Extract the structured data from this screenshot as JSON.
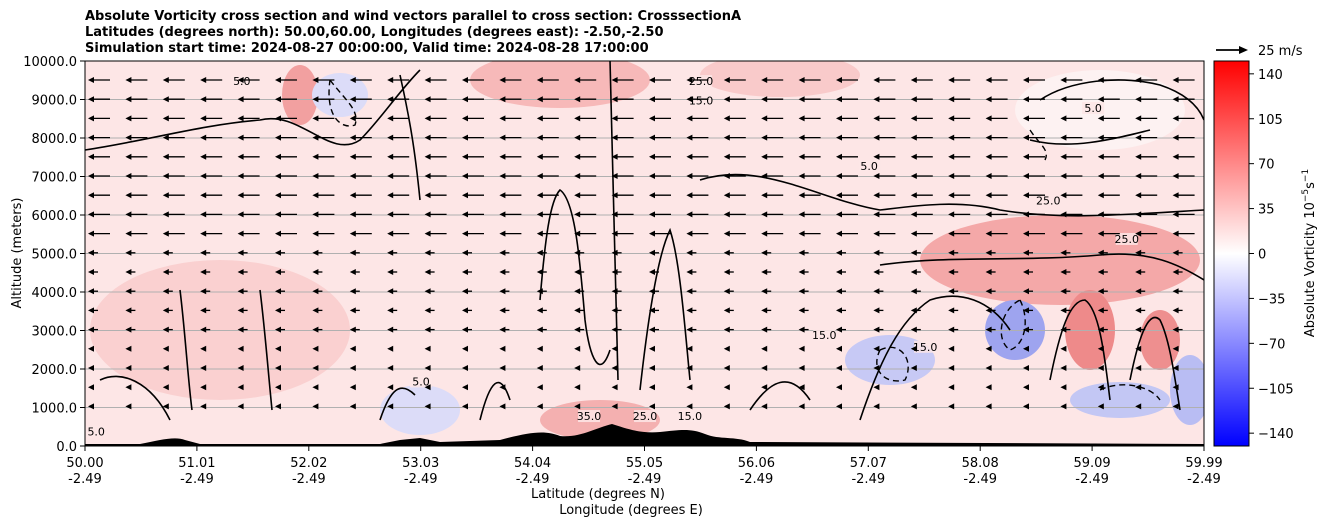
{
  "chart_data": {
    "type": "heatmap",
    "title_lines": [
      "Absolute Vorticity cross section and wind vectors parallel to cross section: CrosssectionA",
      "Latitudes (degrees north): 50.00,60.00, Longitudes (degrees east): -2.50,-2.50",
      "Simulation start time: 2024-08-27 00:00:00, Valid time: 2024-08-28 17:00:00"
    ],
    "xlabel": "Latitude (degrees N)",
    "xlabel2": "Longitude (degrees E)",
    "ylabel": "Altitude (meters)",
    "ylim": [
      0,
      10000
    ],
    "y_ticks": [
      "0.0",
      "1000.0",
      "2000.0",
      "3000.0",
      "4000.0",
      "5000.0",
      "6000.0",
      "7000.0",
      "8000.0",
      "9000.0",
      "10000.0"
    ],
    "x_ticks": [
      {
        "lat": "50.00",
        "lon": "-2.49"
      },
      {
        "lat": "51.01",
        "lon": "-2.49"
      },
      {
        "lat": "52.02",
        "lon": "-2.49"
      },
      {
        "lat": "53.03",
        "lon": "-2.49"
      },
      {
        "lat": "54.04",
        "lon": "-2.49"
      },
      {
        "lat": "55.05",
        "lon": "-2.49"
      },
      {
        "lat": "56.06",
        "lon": "-2.49"
      },
      {
        "lat": "57.07",
        "lon": "-2.49"
      },
      {
        "lat": "58.08",
        "lon": "-2.49"
      },
      {
        "lat": "59.09",
        "lon": "-2.49"
      },
      {
        "lat": "59.99",
        "lon": "-2.49"
      }
    ],
    "colorbar": {
      "label": "Absolute Vorticity 10",
      "label_exp": "−5",
      "label_unit": "s",
      "label_unit_exp": "−1",
      "range": [
        -150,
        150
      ],
      "ticks": [
        "140",
        "105",
        "70",
        "35",
        "0",
        "−35",
        "−70",
        "−105",
        "−140"
      ],
      "tick_values": [
        140,
        105,
        70,
        35,
        0,
        -35,
        -70,
        -105,
        -140
      ]
    },
    "quiver_key": "25 m/s",
    "contour_labels": [
      {
        "text": "25.0",
        "lat": 55.5,
        "alt": 9400
      },
      {
        "text": "15.0",
        "lat": 55.5,
        "alt": 8900
      },
      {
        "text": "25.0",
        "lat": 58.6,
        "alt": 6300
      },
      {
        "text": "25.0",
        "lat": 59.3,
        "alt": 5300
      },
      {
        "text": "15.0",
        "lat": 56.6,
        "alt": 2800
      },
      {
        "text": "15.0",
        "lat": 57.5,
        "alt": 2500
      },
      {
        "text": "35.0",
        "lat": 54.5,
        "alt": 700
      },
      {
        "text": "25.0",
        "lat": 55.0,
        "alt": 700
      },
      {
        "text": "15.0",
        "lat": 55.4,
        "alt": 700
      },
      {
        "text": "5.0",
        "lat": 50.1,
        "alt": 300
      },
      {
        "text": "5.0",
        "lat": 53.0,
        "alt": 1600
      },
      {
        "text": "5.0",
        "lat": 51.4,
        "alt": 9400
      },
      {
        "text": "5.0",
        "lat": 59.0,
        "alt": 8700
      },
      {
        "text": "5.0",
        "lat": 57.0,
        "alt": 7200
      }
    ]
  }
}
